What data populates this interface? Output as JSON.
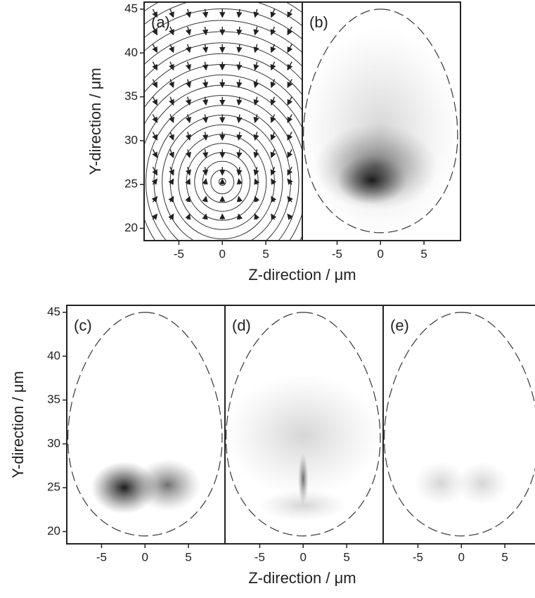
{
  "chart_data": [
    {
      "type": "vector-field",
      "panel_label": "(a)",
      "xlabel": "Z-direction / μm",
      "ylabel": "Y-direction / μm",
      "xlim": [
        -9,
        9.2
      ],
      "ylim": [
        18.6,
        45.8
      ],
      "xticks": [
        -5,
        0,
        5
      ],
      "yticks": [
        20,
        25,
        30,
        35,
        40,
        45
      ]
    },
    {
      "type": "density",
      "panel_label": "(b)",
      "xlim": [
        -9,
        9.2
      ],
      "ylim": [
        18.6,
        45.8
      ],
      "xticks": [
        -5,
        0,
        5
      ]
    },
    {
      "type": "density",
      "panel_label": "(c)",
      "xlabel": "Z-direction / μm",
      "ylabel": "Y-direction / μm",
      "xlim": [
        -9,
        9.2
      ],
      "ylim": [
        18.6,
        45.8
      ],
      "xticks": [
        -5,
        0,
        5
      ],
      "yticks": [
        20,
        25,
        30,
        35,
        40,
        45
      ]
    },
    {
      "type": "density",
      "panel_label": "(d)",
      "xlim": [
        -9,
        9.2
      ],
      "ylim": [
        18.6,
        45.8
      ],
      "xticks": [
        -5,
        0,
        5
      ]
    },
    {
      "type": "density",
      "panel_label": "(e)",
      "xlim": [
        -9,
        9.2
      ],
      "ylim": [
        18.6,
        45.8
      ],
      "xticks": [
        -5,
        0,
        5
      ]
    }
  ]
}
